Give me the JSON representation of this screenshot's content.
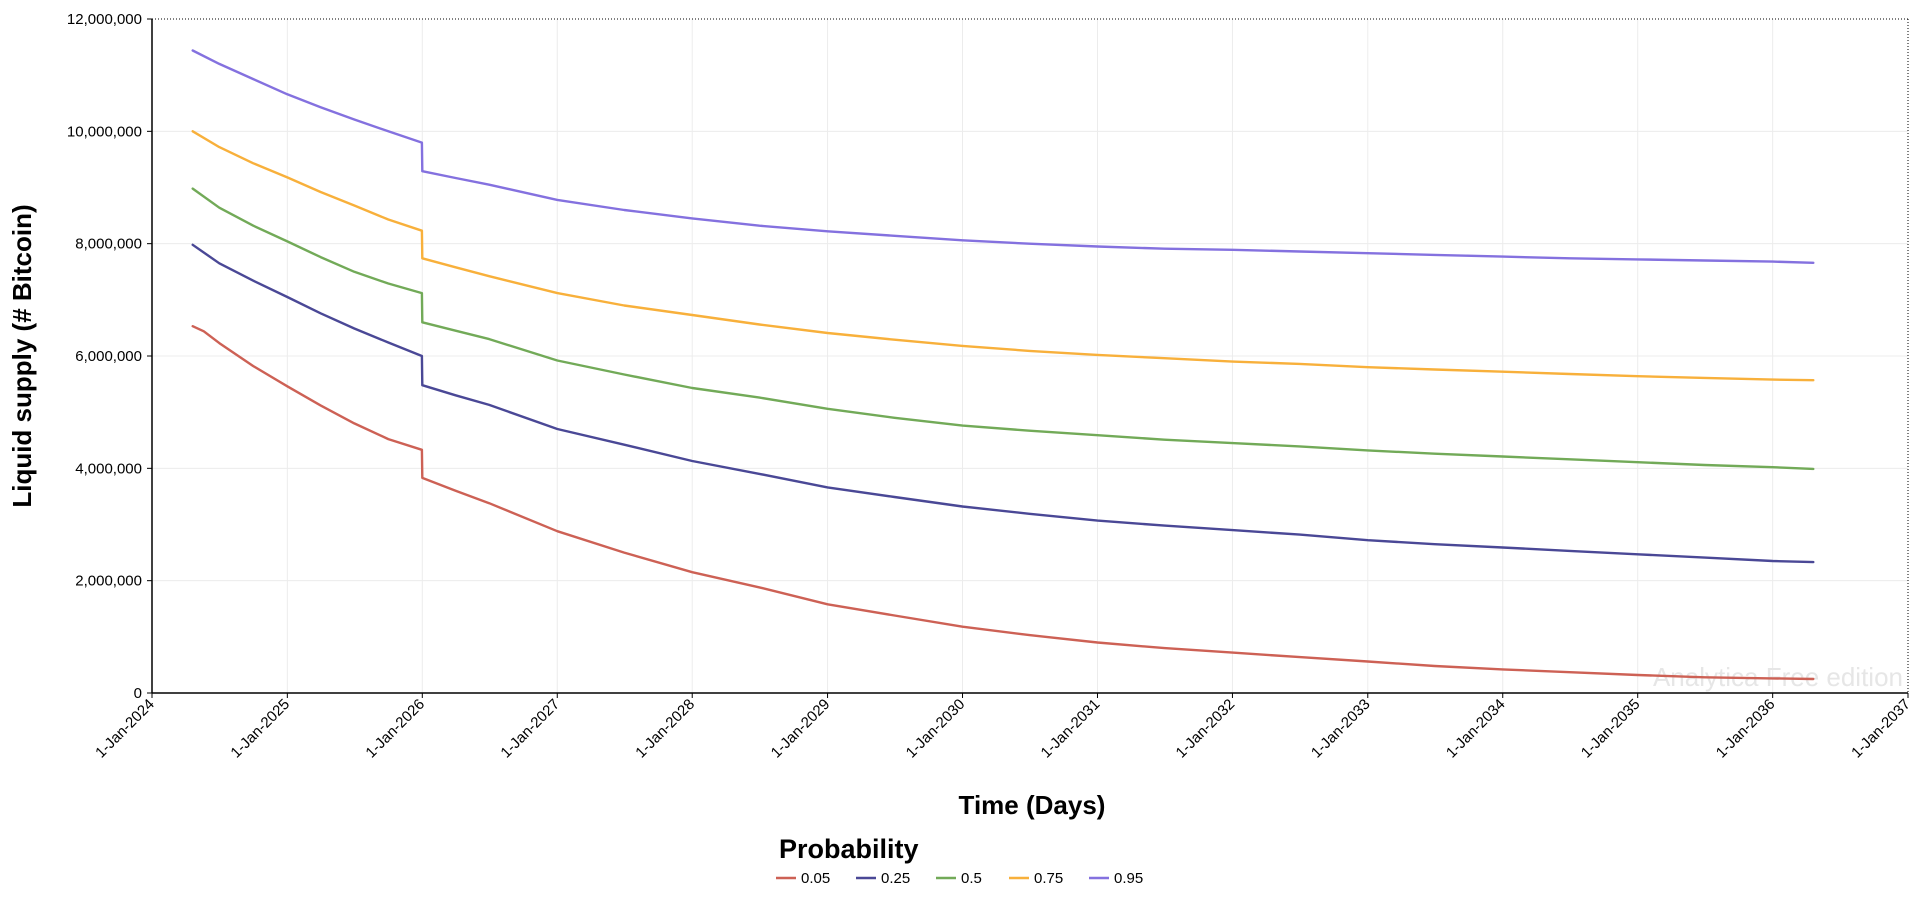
{
  "colors": {
    "0.05": "#cd6155",
    "0.25": "#4a4896",
    "0.5": "#72aa58",
    "0.75": "#f8b03b",
    "0.95": "#8471df",
    "grid": "#ececec",
    "axis": "#000000",
    "watermark": "#e6e6e6"
  },
  "chart_data": {
    "type": "line",
    "xlabel": "Time (Days)",
    "ylabel": "Liquid supply (# Bitcoin)",
    "watermark": "Analytica Free edition",
    "grid": true,
    "legend": {
      "title": "Probability",
      "placement": "bottom-center"
    },
    "xlim": [
      "2024-01-01",
      "2037-01-01"
    ],
    "ylim": [
      0,
      12000000
    ],
    "x_ticks": [
      "1-Jan-2024",
      "1-Jan-2025",
      "1-Jan-2026",
      "1-Jan-2027",
      "1-Jan-2028",
      "1-Jan-2029",
      "1-Jan-2030",
      "1-Jan-2031",
      "1-Jan-2032",
      "1-Jan-2033",
      "1-Jan-2034",
      "1-Jan-2035",
      "1-Jan-2036",
      "1-Jan-2037"
    ],
    "y_ticks": [
      0,
      2000000,
      4000000,
      6000000,
      8000000,
      10000000,
      12000000
    ],
    "y_tick_labels": [
      "0",
      "2,000,000",
      "4,000,000",
      "6,000,000",
      "8,000,000",
      "10,000,000",
      "12,000,000"
    ],
    "series": [
      {
        "name": "0.05",
        "points": [
          [
            "2024-04-20",
            6530000
          ],
          [
            "2024-05-20",
            6440000
          ],
          [
            "2024-07-01",
            6230000
          ],
          [
            "2024-10-01",
            5820000
          ],
          [
            "2025-01-01",
            5460000
          ],
          [
            "2025-04-01",
            5120000
          ],
          [
            "2025-07-01",
            4800000
          ],
          [
            "2025-10-01",
            4520000
          ],
          [
            "2025-12-31",
            4330000
          ],
          [
            "2026-01-01",
            3830000
          ],
          [
            "2026-04-01",
            3600000
          ],
          [
            "2026-07-01",
            3380000
          ],
          [
            "2027-01-01",
            2880000
          ],
          [
            "2027-07-01",
            2500000
          ],
          [
            "2028-01-01",
            2150000
          ],
          [
            "2028-07-01",
            1880000
          ],
          [
            "2029-01-01",
            1580000
          ],
          [
            "2029-07-01",
            1380000
          ],
          [
            "2030-01-01",
            1180000
          ],
          [
            "2030-07-01",
            1030000
          ],
          [
            "2031-01-01",
            900000
          ],
          [
            "2031-07-01",
            800000
          ],
          [
            "2032-01-01",
            720000
          ],
          [
            "2032-07-01",
            640000
          ],
          [
            "2033-01-01",
            560000
          ],
          [
            "2033-07-01",
            480000
          ],
          [
            "2034-01-01",
            420000
          ],
          [
            "2034-07-01",
            370000
          ],
          [
            "2035-01-01",
            320000
          ],
          [
            "2035-07-01",
            280000
          ],
          [
            "2036-01-01",
            260000
          ],
          [
            "2036-04-20",
            250000
          ]
        ]
      },
      {
        "name": "0.25",
        "points": [
          [
            "2024-04-20",
            7980000
          ],
          [
            "2024-07-01",
            7650000
          ],
          [
            "2024-10-01",
            7340000
          ],
          [
            "2025-01-01",
            7050000
          ],
          [
            "2025-04-01",
            6760000
          ],
          [
            "2025-07-01",
            6490000
          ],
          [
            "2025-10-01",
            6240000
          ],
          [
            "2025-12-31",
            6000000
          ],
          [
            "2026-01-01",
            5480000
          ],
          [
            "2026-04-01",
            5300000
          ],
          [
            "2026-07-01",
            5130000
          ],
          [
            "2027-01-01",
            4700000
          ],
          [
            "2027-07-01",
            4420000
          ],
          [
            "2028-01-01",
            4130000
          ],
          [
            "2028-07-01",
            3900000
          ],
          [
            "2029-01-01",
            3660000
          ],
          [
            "2029-07-01",
            3490000
          ],
          [
            "2030-01-01",
            3320000
          ],
          [
            "2030-07-01",
            3190000
          ],
          [
            "2031-01-01",
            3070000
          ],
          [
            "2031-07-01",
            2980000
          ],
          [
            "2032-01-01",
            2900000
          ],
          [
            "2032-07-01",
            2820000
          ],
          [
            "2033-01-01",
            2720000
          ],
          [
            "2033-07-01",
            2650000
          ],
          [
            "2034-01-01",
            2590000
          ],
          [
            "2034-07-01",
            2530000
          ],
          [
            "2035-01-01",
            2470000
          ],
          [
            "2035-07-01",
            2410000
          ],
          [
            "2036-01-01",
            2350000
          ],
          [
            "2036-04-20",
            2330000
          ]
        ]
      },
      {
        "name": "0.5",
        "points": [
          [
            "2024-04-20",
            8980000
          ],
          [
            "2024-07-01",
            8640000
          ],
          [
            "2024-10-01",
            8320000
          ],
          [
            "2025-01-01",
            8040000
          ],
          [
            "2025-04-01",
            7760000
          ],
          [
            "2025-07-01",
            7500000
          ],
          [
            "2025-10-01",
            7290000
          ],
          [
            "2025-12-31",
            7120000
          ],
          [
            "2026-01-01",
            6600000
          ],
          [
            "2026-04-01",
            6450000
          ],
          [
            "2026-07-01",
            6300000
          ],
          [
            "2027-01-01",
            5920000
          ],
          [
            "2027-07-01",
            5670000
          ],
          [
            "2028-01-01",
            5430000
          ],
          [
            "2028-07-01",
            5260000
          ],
          [
            "2029-01-01",
            5060000
          ],
          [
            "2029-07-01",
            4900000
          ],
          [
            "2030-01-01",
            4760000
          ],
          [
            "2030-07-01",
            4670000
          ],
          [
            "2031-01-01",
            4590000
          ],
          [
            "2031-07-01",
            4510000
          ],
          [
            "2032-01-01",
            4450000
          ],
          [
            "2032-07-01",
            4390000
          ],
          [
            "2033-01-01",
            4320000
          ],
          [
            "2033-07-01",
            4260000
          ],
          [
            "2034-01-01",
            4210000
          ],
          [
            "2034-07-01",
            4160000
          ],
          [
            "2035-01-01",
            4110000
          ],
          [
            "2035-07-01",
            4060000
          ],
          [
            "2036-01-01",
            4020000
          ],
          [
            "2036-04-20",
            3990000
          ]
        ]
      },
      {
        "name": "0.75",
        "points": [
          [
            "2024-04-20",
            10000000
          ],
          [
            "2024-07-01",
            9720000
          ],
          [
            "2024-10-01",
            9430000
          ],
          [
            "2025-01-01",
            9180000
          ],
          [
            "2025-04-01",
            8920000
          ],
          [
            "2025-07-01",
            8680000
          ],
          [
            "2025-10-01",
            8430000
          ],
          [
            "2025-12-31",
            8230000
          ],
          [
            "2026-01-01",
            7740000
          ],
          [
            "2026-04-01",
            7580000
          ],
          [
            "2026-07-01",
            7420000
          ],
          [
            "2027-01-01",
            7120000
          ],
          [
            "2027-07-01",
            6900000
          ],
          [
            "2028-01-01",
            6730000
          ],
          [
            "2028-07-01",
            6560000
          ],
          [
            "2029-01-01",
            6410000
          ],
          [
            "2029-07-01",
            6290000
          ],
          [
            "2030-01-01",
            6180000
          ],
          [
            "2030-07-01",
            6090000
          ],
          [
            "2031-01-01",
            6020000
          ],
          [
            "2031-07-01",
            5960000
          ],
          [
            "2032-01-01",
            5900000
          ],
          [
            "2032-07-01",
            5860000
          ],
          [
            "2033-01-01",
            5800000
          ],
          [
            "2033-07-01",
            5760000
          ],
          [
            "2034-01-01",
            5720000
          ],
          [
            "2034-07-01",
            5680000
          ],
          [
            "2035-01-01",
            5640000
          ],
          [
            "2035-07-01",
            5610000
          ],
          [
            "2036-01-01",
            5580000
          ],
          [
            "2036-04-20",
            5570000
          ]
        ]
      },
      {
        "name": "0.95",
        "points": [
          [
            "2024-04-20",
            11440000
          ],
          [
            "2024-07-01",
            11200000
          ],
          [
            "2024-10-01",
            10930000
          ],
          [
            "2025-01-01",
            10660000
          ],
          [
            "2025-04-01",
            10430000
          ],
          [
            "2025-07-01",
            10210000
          ],
          [
            "2025-10-01",
            10000000
          ],
          [
            "2025-12-31",
            9800000
          ],
          [
            "2026-01-01",
            9290000
          ],
          [
            "2026-04-01",
            9170000
          ],
          [
            "2026-07-01",
            9050000
          ],
          [
            "2027-01-01",
            8780000
          ],
          [
            "2027-07-01",
            8600000
          ],
          [
            "2028-01-01",
            8450000
          ],
          [
            "2028-07-01",
            8320000
          ],
          [
            "2029-01-01",
            8220000
          ],
          [
            "2029-07-01",
            8140000
          ],
          [
            "2030-01-01",
            8060000
          ],
          [
            "2030-07-01",
            8000000
          ],
          [
            "2031-01-01",
            7950000
          ],
          [
            "2031-07-01",
            7910000
          ],
          [
            "2032-01-01",
            7890000
          ],
          [
            "2032-07-01",
            7860000
          ],
          [
            "2033-01-01",
            7830000
          ],
          [
            "2033-07-01",
            7800000
          ],
          [
            "2034-01-01",
            7770000
          ],
          [
            "2034-07-01",
            7740000
          ],
          [
            "2035-01-01",
            7720000
          ],
          [
            "2035-07-01",
            7700000
          ],
          [
            "2036-01-01",
            7680000
          ],
          [
            "2036-04-20",
            7660000
          ]
        ]
      }
    ]
  }
}
